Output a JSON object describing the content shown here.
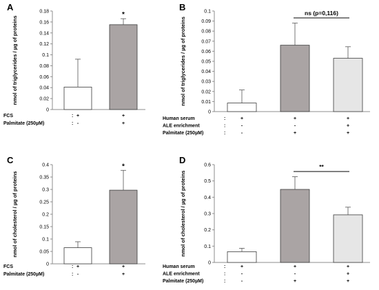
{
  "style": {
    "axis_color": "#8c8c8c",
    "text_color": "#000000",
    "bar_stroke": "#3a3a3a"
  },
  "chart_data": [
    {
      "panel": "A",
      "type": "bar",
      "ylabel": "nmol of triglycerides / µg of proteins",
      "ylim": [
        0,
        0.18
      ],
      "ytick_step": 0.02,
      "categories": [
        "col1",
        "col2"
      ],
      "values": [
        0.041,
        0.155
      ],
      "errors": [
        0.051,
        0.011
      ],
      "bar_colors": [
        "#ffffff",
        "#aaa4a4"
      ],
      "annotations": [
        {
          "bar": 1,
          "text": "*"
        }
      ],
      "conditions": [
        {
          "label": "FCS",
          "colon": ":",
          "marks": [
            "+",
            "+"
          ]
        },
        {
          "label": "Palmitate (250µM)",
          "colon": ":",
          "marks": [
            "-",
            "+"
          ]
        }
      ]
    },
    {
      "panel": "B",
      "type": "bar",
      "ylabel": "nmol of triglycerides / µg of proteins",
      "ylim": [
        0,
        0.1
      ],
      "ytick_step": 0.01,
      "categories": [
        "col1",
        "col2",
        "col3"
      ],
      "values": [
        0.0085,
        0.066,
        0.053
      ],
      "errors": [
        0.013,
        0.022,
        0.0115
      ],
      "bar_colors": [
        "#ffffff",
        "#aaa4a4",
        "#e6e6e6"
      ],
      "bracket": {
        "from": 1,
        "to": 2,
        "text": "ns (p=0,116)"
      },
      "conditions": [
        {
          "label": "Human serum",
          "colon": ":",
          "marks": [
            "+",
            "+",
            "+"
          ]
        },
        {
          "label": "ALE enrichment",
          "colon": ":",
          "marks": [
            "-",
            "-",
            "+"
          ]
        },
        {
          "label": "Palmitate (250µM)",
          "colon": ":",
          "marks": [
            "-",
            "+",
            "+"
          ]
        }
      ]
    },
    {
      "panel": "C",
      "type": "bar",
      "ylabel": "nmol of cholesterol / µg of proteins",
      "ylim": [
        0,
        0.4
      ],
      "ytick_step": 0.05,
      "categories": [
        "col1",
        "col2"
      ],
      "values": [
        0.065,
        0.297
      ],
      "errors": [
        0.024,
        0.08
      ],
      "bar_colors": [
        "#ffffff",
        "#aaa4a4"
      ],
      "annotations": [
        {
          "bar": 1,
          "text": "*"
        }
      ],
      "conditions": [
        {
          "label": "FCS",
          "colon": ":",
          "marks": [
            "+",
            "+"
          ]
        },
        {
          "label": "Palmitate (250µM)",
          "colon": ":",
          "marks": [
            "-",
            "+"
          ]
        }
      ]
    },
    {
      "panel": "D",
      "type": "bar",
      "ylabel": "nmol of cholesterol / µg of proteins",
      "ylim": [
        0,
        0.6
      ],
      "ytick_step": 0.1,
      "categories": [
        "col1",
        "col2",
        "col3"
      ],
      "values": [
        0.066,
        0.448,
        0.292
      ],
      "errors": [
        0.021,
        0.078,
        0.047
      ],
      "bar_colors": [
        "#ffffff",
        "#aaa4a4",
        "#e6e6e6"
      ],
      "bracket": {
        "from": 1,
        "to": 2,
        "text": "**"
      },
      "conditions": [
        {
          "label": "Human serum",
          "colon": ":",
          "marks": [
            "+",
            "+",
            "+"
          ]
        },
        {
          "label": "ALE enrichment",
          "colon": ":",
          "marks": [
            "-",
            "-",
            "+"
          ]
        },
        {
          "label": "Palmitate (250µM)",
          "colon": ":",
          "marks": [
            "-",
            "+",
            "+"
          ]
        }
      ]
    }
  ]
}
